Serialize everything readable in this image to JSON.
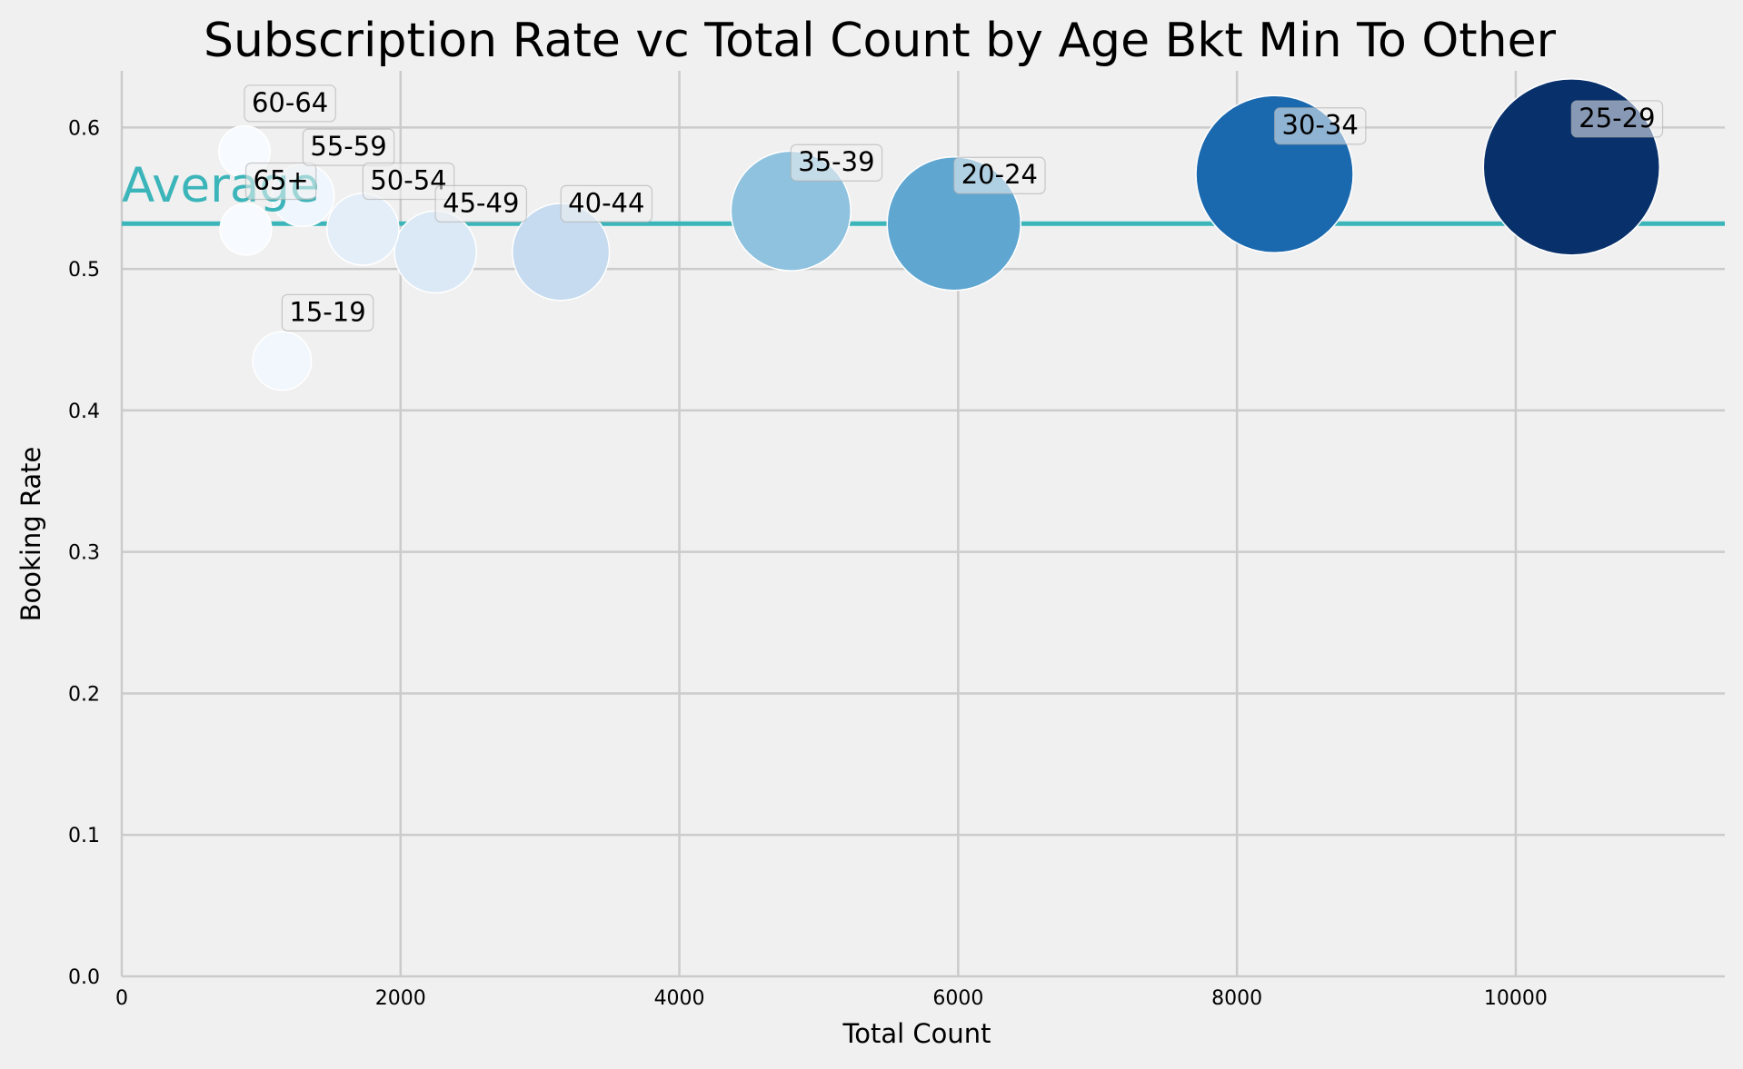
{
  "chart_data": {
    "type": "scatter",
    "title": "Subscription Rate vc Total Count by Age Bkt Min To Other",
    "xlabel": "Total Count",
    "ylabel": "Booking Rate",
    "xlim": [
      0,
      11500
    ],
    "ylim": [
      0,
      0.64
    ],
    "xticks": [
      0,
      2000,
      4000,
      6000,
      8000,
      10000
    ],
    "xtick_labels": [
      "0",
      "2000",
      "4000",
      "6000",
      "8000",
      "10000"
    ],
    "yticks": [
      0.0,
      0.1,
      0.2,
      0.3,
      0.4,
      0.5,
      0.6
    ],
    "ytick_labels": [
      "0.0",
      "0.1",
      "0.2",
      "0.3",
      "0.4",
      "0.5",
      "0.6"
    ],
    "grid": true,
    "bubble_size_encodes": "Total Count",
    "colormap": "Blues",
    "points": [
      {
        "label": "60-64",
        "x": 880,
        "y": 0.583,
        "color": "#f7fbff"
      },
      {
        "label": "65+",
        "x": 890,
        "y": 0.528,
        "color": "#f7fbff"
      },
      {
        "label": "15-19",
        "x": 1150,
        "y": 0.435,
        "color": "#f2f7fd"
      },
      {
        "label": "55-59",
        "x": 1300,
        "y": 0.552,
        "color": "#f0f6fd"
      },
      {
        "label": "50-54",
        "x": 1730,
        "y": 0.528,
        "color": "#e4eef9"
      },
      {
        "label": "45-49",
        "x": 2250,
        "y": 0.512,
        "color": "#dbe9f6"
      },
      {
        "label": "40-44",
        "x": 3150,
        "y": 0.512,
        "color": "#c6dbef"
      },
      {
        "label": "35-39",
        "x": 4800,
        "y": 0.541,
        "color": "#8fc2de"
      },
      {
        "label": "20-24",
        "x": 5970,
        "y": 0.532,
        "color": "#5fa6d1"
      },
      {
        "label": "30-34",
        "x": 8270,
        "y": 0.567,
        "color": "#1a68ae"
      },
      {
        "label": "25-29",
        "x": 10400,
        "y": 0.572,
        "color": "#08306b"
      }
    ],
    "reference_line": {
      "label": "Average",
      "y": 0.532,
      "color": "#3bb5b9"
    }
  }
}
